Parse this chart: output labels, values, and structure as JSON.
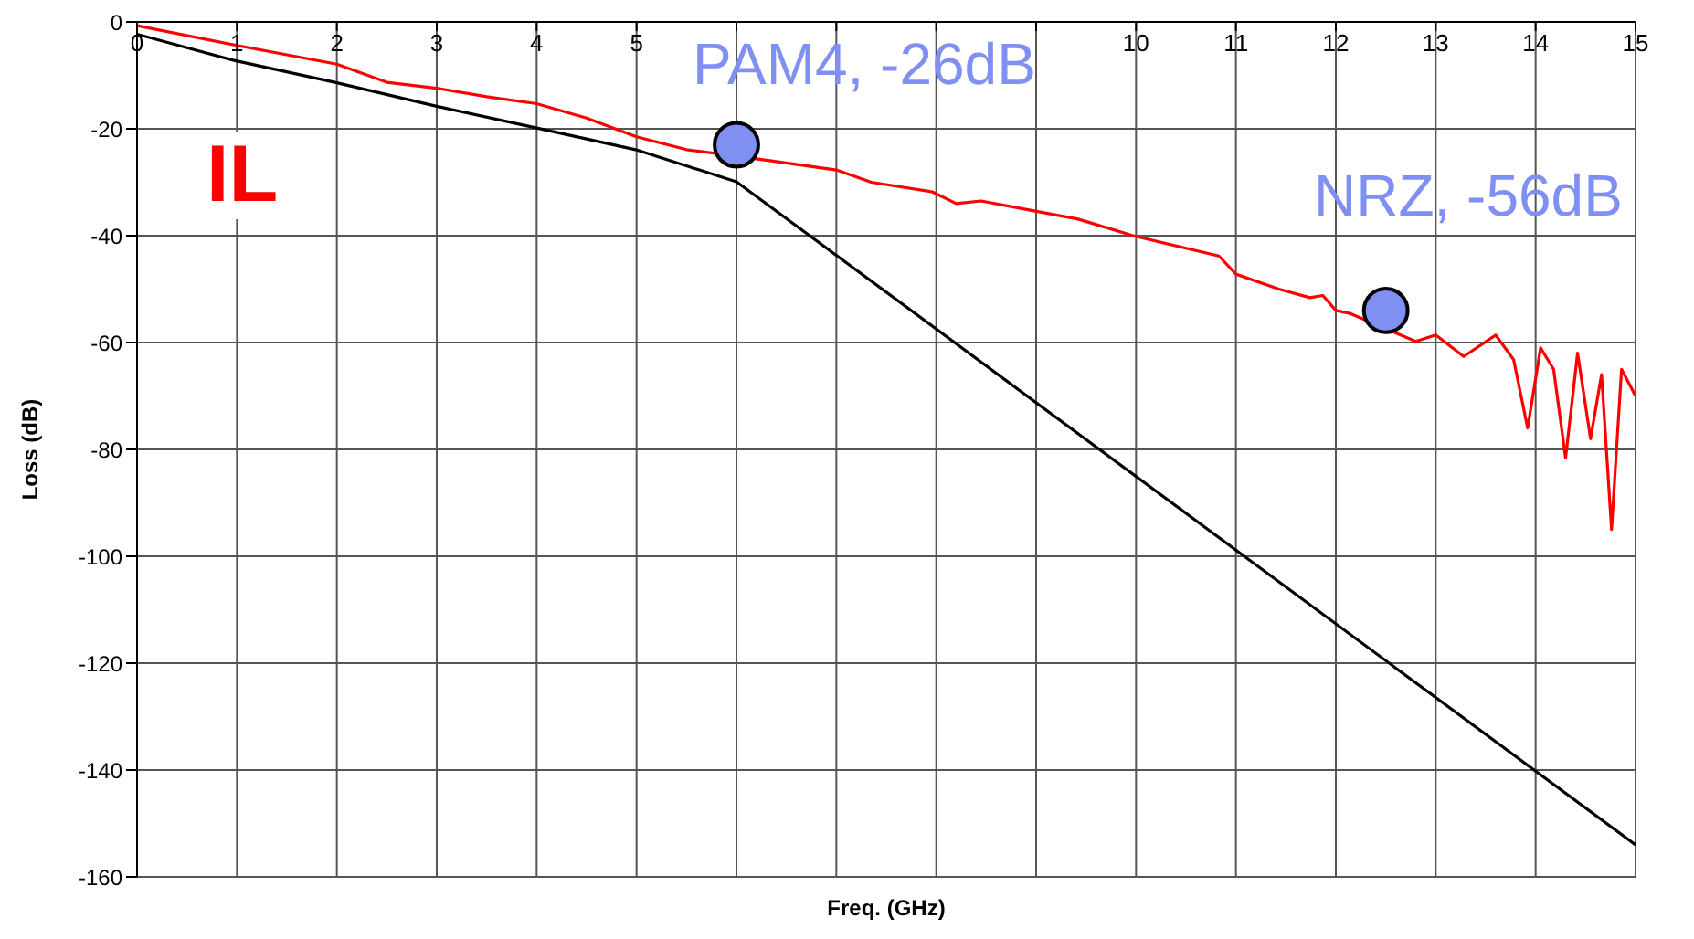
{
  "chart_data": {
    "type": "line",
    "xlabel": "Freq. (GHz)",
    "ylabel": "Loss (dB)",
    "xlim": [
      0,
      15
    ],
    "xticks": [
      0,
      1,
      2,
      3,
      4,
      5,
      {
        "value": 6,
        "label": null
      },
      {
        "value": 7,
        "label": null
      },
      {
        "value": 8,
        "label": null
      },
      {
        "value": 9,
        "label": null
      },
      10,
      11,
      12,
      13,
      14,
      15
    ],
    "ylim": [
      -160,
      0
    ],
    "yticks": [
      -160,
      -140,
      -120,
      -100,
      -80,
      -60,
      -40,
      -20,
      0
    ],
    "grid": true,
    "marker": "none",
    "line_style": "solid",
    "series": [
      {
        "color": "#ff0000",
        "x": [
          0,
          1,
          2,
          2.5,
          3,
          3.5,
          4,
          4.5,
          5,
          5.5,
          6.35,
          7,
          7.35,
          7.96,
          8.2,
          8.45,
          8.93,
          9.42,
          9.97,
          10.83,
          11,
          11.43,
          11.74,
          11.87,
          12,
          12.15,
          12.8,
          13,
          13.28,
          13.6,
          13.78,
          13.92,
          14.05,
          14.18,
          14.3,
          14.42,
          14.55,
          14.66,
          14.76,
          14.86,
          15
        ],
        "values": [
          -0.7,
          -4.4,
          -7.9,
          -11.3,
          -12.4,
          -14,
          -15.3,
          -18,
          -21.5,
          -23.9,
          -26,
          -27.7,
          -30,
          -31.8,
          -34,
          -33.5,
          -35.2,
          -36.9,
          -40,
          -43.8,
          -47.2,
          -50,
          -51.6,
          -51.2,
          -54,
          -54.6,
          -59.8,
          -58.6,
          -62.6,
          -58.6,
          -63.2,
          -76,
          -61,
          -65,
          -81.6,
          -62,
          -78,
          -66,
          -95,
          -65,
          -70
        ]
      },
      {
        "color": "#000000",
        "x": [
          0,
          0.97,
          1.98,
          2.98,
          3.99,
          4.99,
          6,
          15
        ],
        "values": [
          -2.3,
          -7.2,
          -11.3,
          -15.7,
          -19.8,
          -23.9,
          -29.9,
          -154
        ]
      },
      {
        "type": "scatter",
        "color": "#7f8ff2",
        "marker": "circle",
        "x": [
          6,
          12.5
        ],
        "values": [
          -23,
          -54
        ]
      }
    ],
    "annotations": [
      "IL",
      "PAM4, -26dB",
      "NRZ, -56dB"
    ]
  }
}
